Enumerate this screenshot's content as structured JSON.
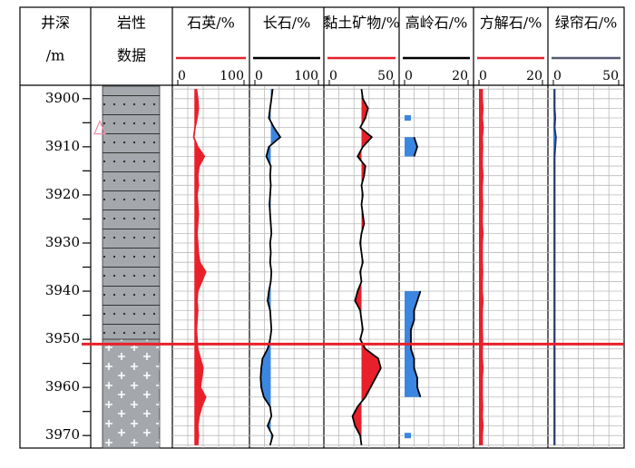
{
  "chart_data": {
    "type": "well_log",
    "depth_label": [
      "井深",
      "/m"
    ],
    "lithology_label": [
      "岩性",
      "数据"
    ],
    "ylim": [
      3897.4,
      3972.6
    ],
    "yticks": [
      3900,
      3910,
      3920,
      3930,
      3940,
      3950,
      3960,
      3970
    ],
    "minor_yticks": [
      3905,
      3915,
      3925,
      3935,
      3945,
      3955,
      3965
    ],
    "grid_interval": 2,
    "marker_depth": 3951,
    "marker_color": "#e8202a",
    "triangle_depth": 3906,
    "lithology": [
      {
        "top": 3897.4,
        "bottom": 3950,
        "pattern": "sandstone"
      },
      {
        "top": 3950,
        "bottom": 3972.6,
        "pattern": "granite"
      }
    ],
    "depths": [
      3898,
      3900,
      3902,
      3904,
      3906,
      3908,
      3910,
      3912,
      3914,
      3916,
      3918,
      3920,
      3922,
      3924,
      3926,
      3928,
      3930,
      3932,
      3934,
      3936,
      3938,
      3940,
      3942,
      3944,
      3946,
      3948,
      3950,
      3952,
      3954,
      3956,
      3958,
      3960,
      3962,
      3964,
      3966,
      3968,
      3970,
      3972
    ],
    "tracks": [
      {
        "name": "石英/%",
        "color": "#e8202a",
        "line_color": "#e8202a",
        "fill_color": "#e8202a",
        "fill_to": 25,
        "xlim": [
          0,
          100
        ],
        "xticks": [
          0,
          100
        ],
        "values": [
          28,
          30,
          31,
          29,
          26,
          24,
          30,
          40,
          32,
          30,
          31,
          29,
          30,
          31,
          30,
          29,
          30,
          31,
          33,
          42,
          36,
          30,
          29,
          30,
          29,
          28,
          29,
          30,
          34,
          38,
          36,
          34,
          42,
          36,
          32,
          30,
          31,
          30
        ]
      },
      {
        "name": "长石/%",
        "color": "#000000",
        "line_color": "#000000",
        "fill_color": "#3b86e0",
        "fill_to": 25,
        "xlim": [
          0,
          100
        ],
        "xticks": [
          0,
          100
        ],
        "values": [
          28,
          26,
          24,
          22,
          30,
          40,
          22,
          18,
          25,
          24,
          25,
          24,
          23,
          24,
          25,
          26,
          24,
          25,
          24,
          26,
          25,
          22,
          20,
          24,
          25,
          26,
          24,
          20,
          12,
          10,
          9,
          10,
          14,
          24,
          26,
          20,
          28,
          24
        ]
      },
      {
        "name": "黏土矿物/%",
        "color": "#e8202a",
        "line_color": "#000000",
        "fill_color": "#e8202a",
        "fill_to": 25,
        "xlim": [
          0,
          50
        ],
        "xticks": [
          0,
          50
        ],
        "values": [
          25,
          26,
          30,
          28,
          24,
          33,
          26,
          22,
          28,
          27,
          25,
          26,
          25,
          26,
          27,
          25,
          24,
          25,
          26,
          24,
          25,
          22,
          20,
          24,
          25,
          26,
          24,
          28,
          38,
          40,
          36,
          32,
          28,
          22,
          18,
          20,
          24,
          25
        ]
      },
      {
        "name": "高岭石/%",
        "color": "#000000",
        "line_color": "#000000",
        "fill_color": "#3b86e0",
        "fill_to": 0,
        "xlim": [
          0,
          20
        ],
        "xticks": [
          0,
          20
        ],
        "values": [
          null,
          null,
          null,
          2,
          null,
          3,
          4,
          3,
          null,
          null,
          null,
          null,
          null,
          null,
          null,
          null,
          null,
          null,
          null,
          null,
          null,
          5,
          4,
          3,
          3,
          2,
          2,
          2,
          3,
          3,
          4,
          4,
          5,
          null,
          null,
          null,
          2,
          null
        ]
      },
      {
        "name": "方解石/%",
        "color": "#e8202a",
        "line_color": "#e8202a",
        "fill_color": "#e8202a",
        "fill_to": 0,
        "xlim": [
          0,
          20
        ],
        "xticks": [
          0,
          20
        ],
        "values": [
          1,
          1,
          1.2,
          1,
          1.3,
          1,
          1.1,
          1,
          1,
          1.2,
          1,
          1,
          1.1,
          1,
          1,
          1.2,
          1,
          1,
          1,
          1.1,
          1,
          1,
          1.2,
          1,
          1,
          1,
          1.1,
          1,
          1,
          1.2,
          1,
          1,
          1,
          1.1,
          1,
          1.2,
          1,
          1
        ]
      },
      {
        "name": "绿帘石/%",
        "color": "#555a70",
        "line_color": "#2a3060",
        "fill_color": "#3b86e0",
        "fill_to": 0,
        "xlim": [
          0,
          50
        ],
        "xticks": [
          0,
          50
        ],
        "values": [
          1,
          1,
          1,
          1.5,
          1,
          2,
          1.5,
          1,
          1,
          1,
          1,
          1,
          1,
          1,
          1,
          1,
          1,
          1,
          1,
          1,
          1,
          1,
          1,
          1,
          1,
          1,
          1,
          1,
          1,
          1,
          1,
          1,
          1,
          1,
          1,
          1,
          1,
          1
        ]
      }
    ]
  }
}
